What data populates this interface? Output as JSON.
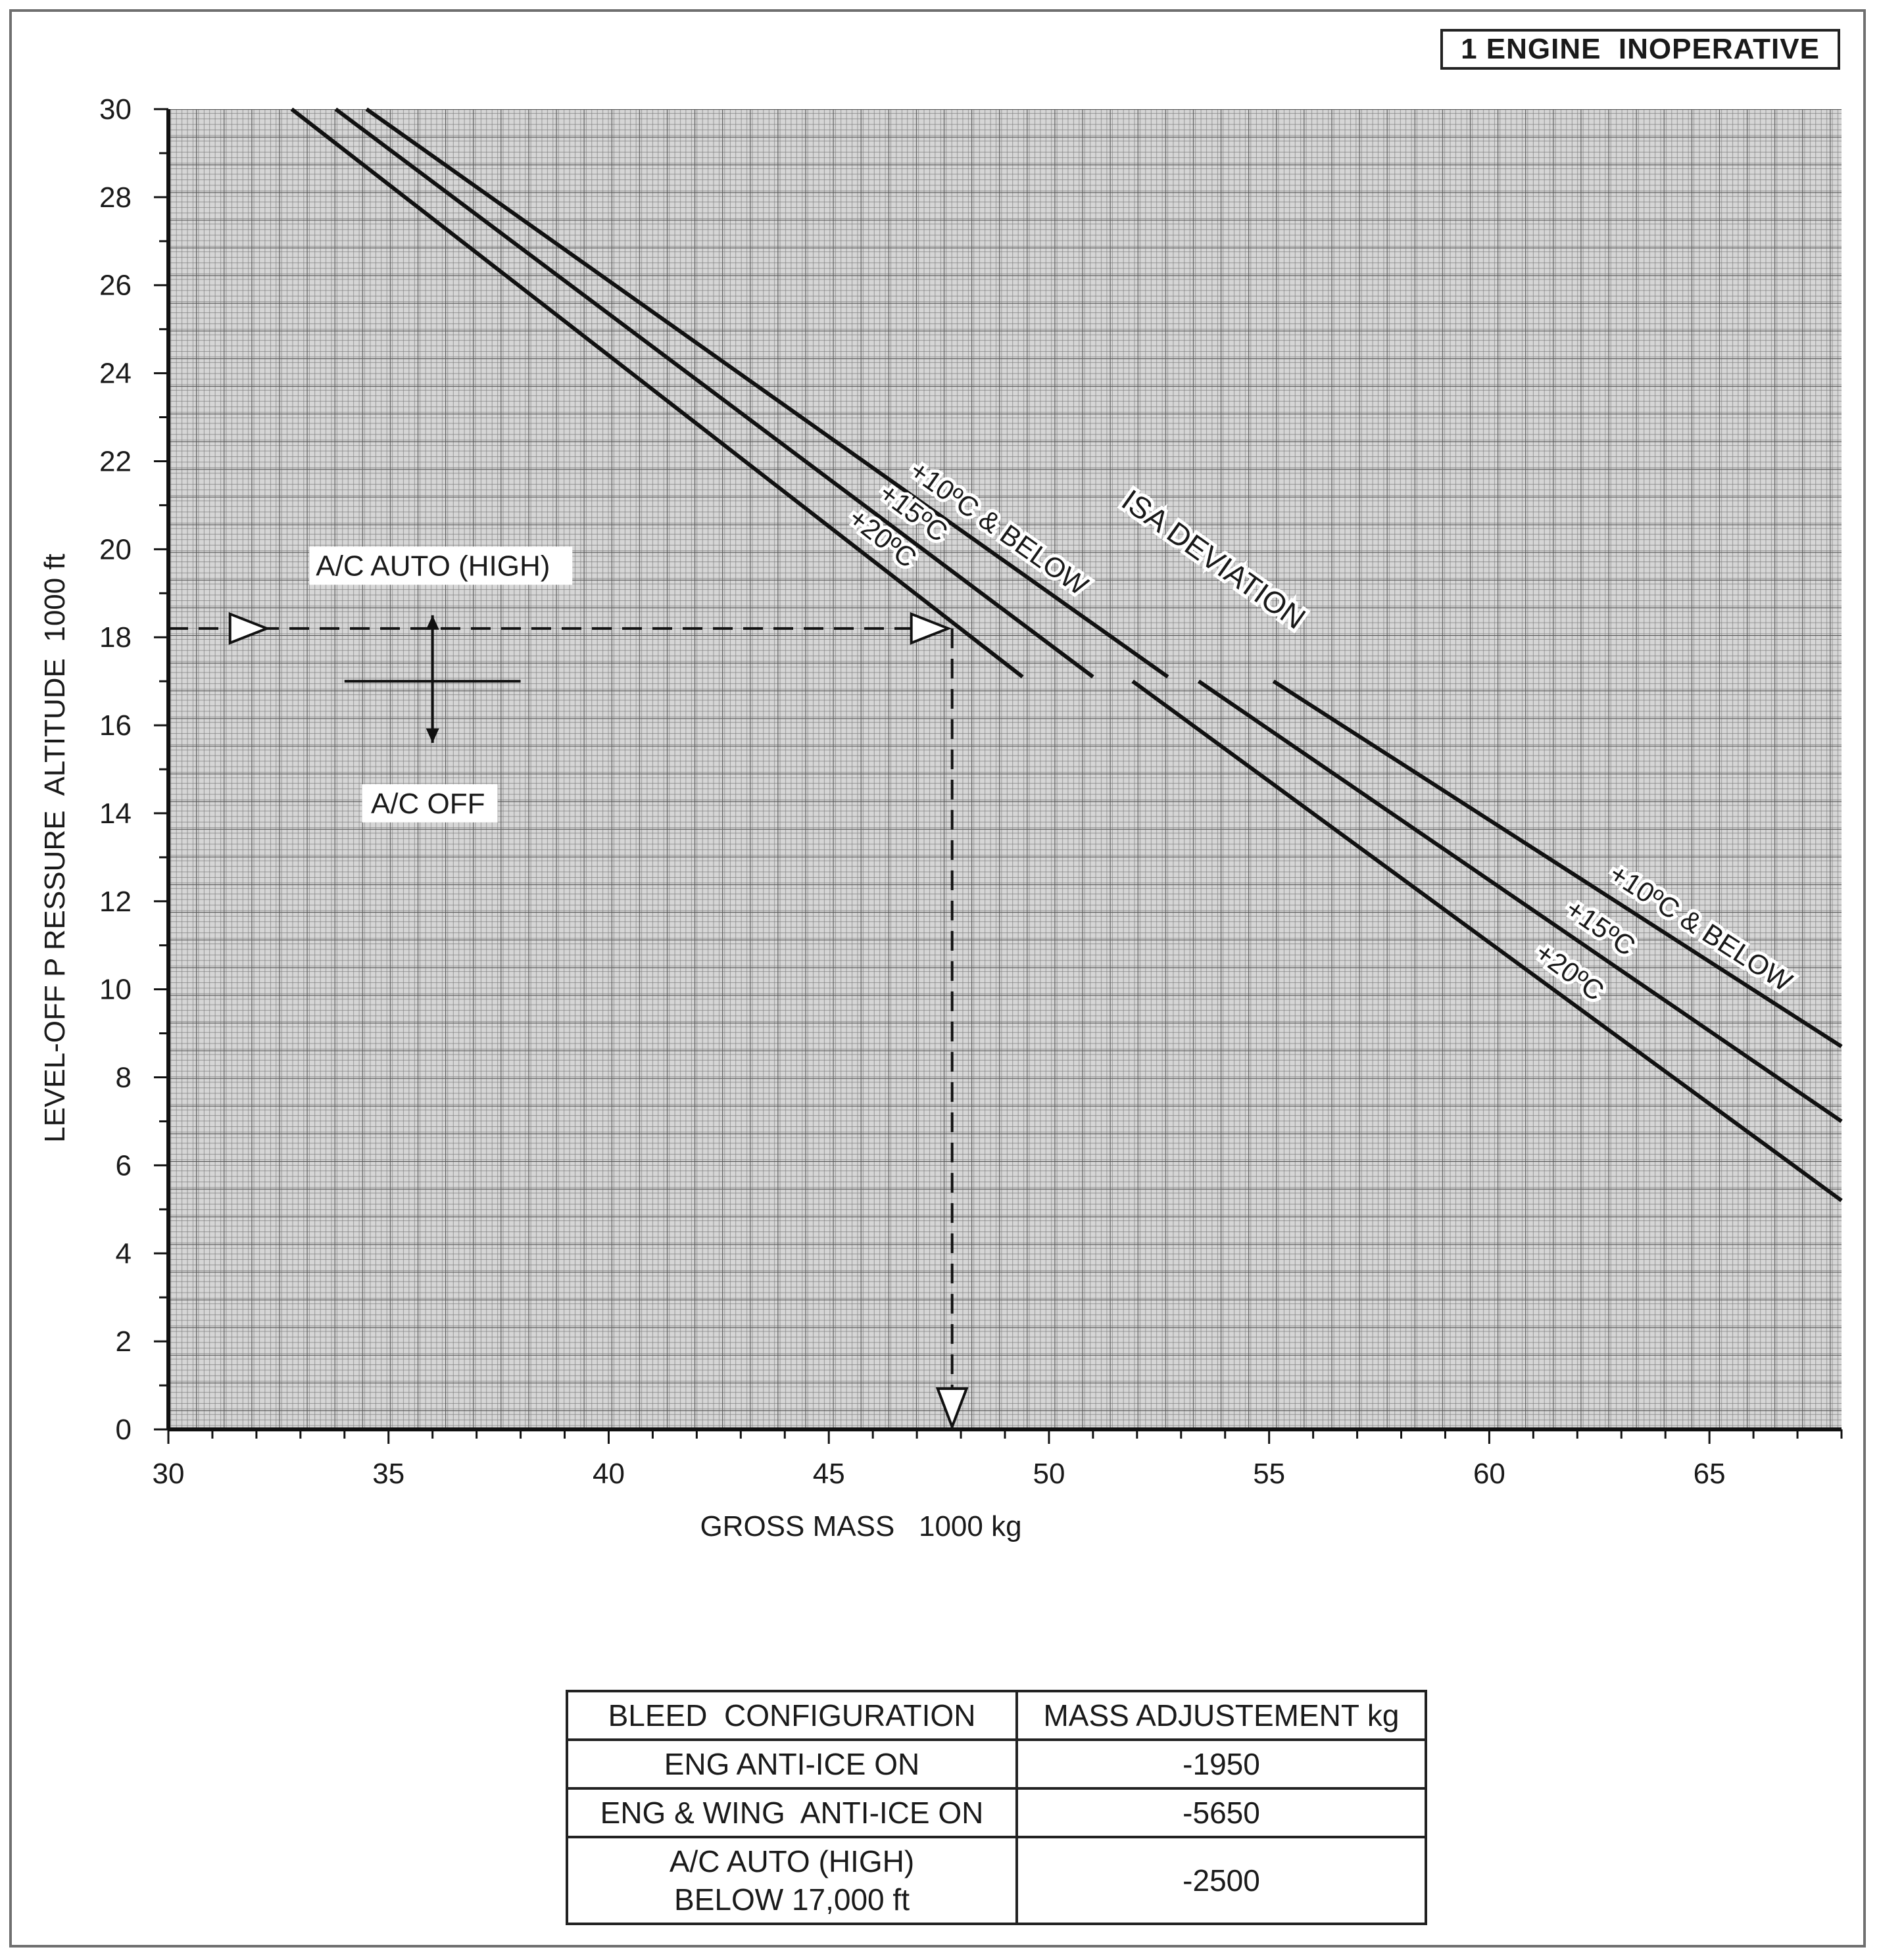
{
  "badge": "1 ENGINE  INOPERATIVE",
  "chart_data": {
    "type": "line",
    "xlabel": "GROSS MASS   1000 kg",
    "ylabel": "LEVEL-OFF P RESSURE  ALTITUDE  1000 ft",
    "xlim": [
      30,
      68
    ],
    "ylim": [
      0,
      30
    ],
    "xticks": [
      "30",
      "35",
      "40",
      "45",
      "50",
      "55",
      "60",
      "65"
    ],
    "yticks": [
      "0",
      "2",
      "4",
      "6",
      "8",
      "10",
      "12",
      "14",
      "16",
      "18",
      "20",
      "22",
      "24",
      "26",
      "28",
      "30"
    ],
    "grid": true,
    "group_label": "ISA DEVIATION",
    "series": [
      {
        "name": "+10ºC & BELOW",
        "segments": [
          [
            [
              34.5,
              30
            ],
            [
              52.7,
              17.1
            ]
          ],
          [
            [
              55.1,
              17.0
            ],
            [
              68.0,
              8.7
            ]
          ]
        ]
      },
      {
        "name": "+15ºC",
        "segments": [
          [
            [
              33.8,
              30
            ],
            [
              51.0,
              17.1
            ]
          ],
          [
            [
              53.4,
              17.0
            ],
            [
              68.0,
              7.0
            ]
          ]
        ]
      },
      {
        "name": "+20ºC",
        "segments": [
          [
            [
              32.8,
              30
            ],
            [
              49.4,
              17.1
            ]
          ],
          [
            [
              51.9,
              17.0
            ],
            [
              68.0,
              5.2
            ]
          ]
        ]
      }
    ],
    "example": {
      "altitude": 18.2,
      "mass": 47.8
    },
    "bleed_indicator": {
      "high": "A/C AUTO (HIGH)",
      "low": "A/C OFF",
      "altitude": 17
    }
  },
  "table": {
    "headers": [
      "BLEED  CONFIGURATION",
      "MASS ADJUSTEMENT kg"
    ],
    "rows": [
      {
        "config": "ENG ANTI-ICE ON",
        "value": "-1950"
      },
      {
        "config": "ENG & WING  ANTI-ICE ON",
        "value": "-5650"
      },
      {
        "config_line1": "A/C AUTO (HIGH)",
        "config_line2": "BELOW 17,000 ft",
        "value": "-2500"
      }
    ]
  }
}
